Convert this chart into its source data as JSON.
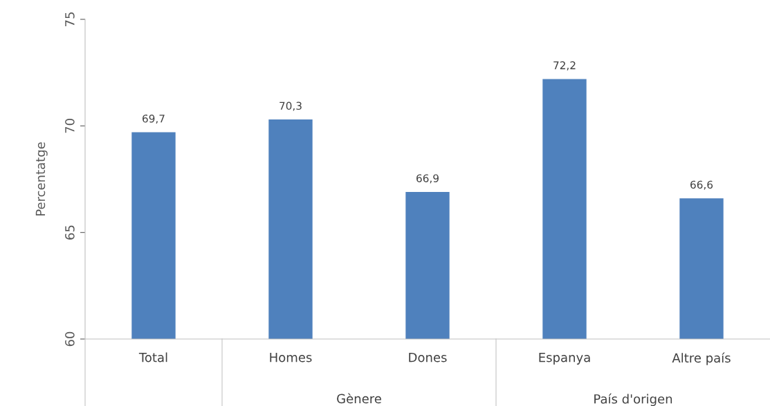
{
  "chart_data": {
    "type": "bar",
    "ylabel": "Percentatge",
    "categories": [
      "Total",
      "Homes",
      "Dones",
      "Espanya",
      "Altre país"
    ],
    "values": [
      69.7,
      70.3,
      66.9,
      72.2,
      66.6
    ],
    "value_labels": [
      "69,7",
      "70,3",
      "66,9",
      "72,2",
      "66,6"
    ],
    "color": "#4f81bd",
    "ylim": [
      60,
      75
    ],
    "yticks": [
      60,
      65,
      70,
      75
    ],
    "grid": false,
    "annotations": [
      "Gènere",
      "País d'origen"
    ]
  }
}
